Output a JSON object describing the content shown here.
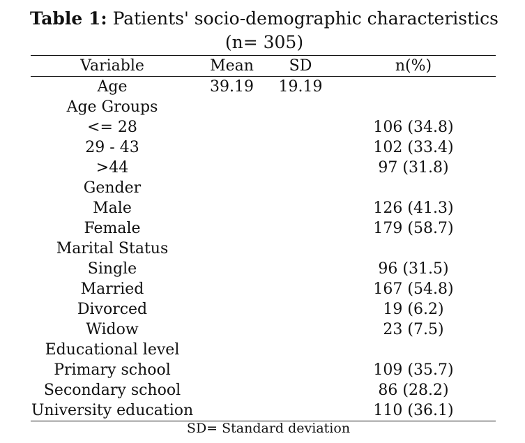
{
  "caption": {
    "label": "Table 1:",
    "text": "Patients' socio-demographic characteristics (n= 305)"
  },
  "table": {
    "headers": [
      "Variable",
      "Mean",
      "SD",
      "n(%)"
    ],
    "rows": [
      [
        "Age",
        "39.19",
        "19.19",
        ""
      ],
      [
        "Age Groups",
        "",
        "",
        ""
      ],
      [
        "<= 28",
        "",
        "",
        "106 (34.8)"
      ],
      [
        "29 - 43",
        "",
        "",
        "102 (33.4)"
      ],
      [
        ">44",
        "",
        "",
        "97 (31.8)"
      ],
      [
        "Gender",
        "",
        "",
        ""
      ],
      [
        "Male",
        "",
        "",
        "126 (41.3)"
      ],
      [
        "Female",
        "",
        "",
        "179 (58.7)"
      ],
      [
        "Marital Status",
        "",
        "",
        ""
      ],
      [
        "Single",
        "",
        "",
        "96 (31.5)"
      ],
      [
        "Married",
        "",
        "",
        "167 (54.8)"
      ],
      [
        "Divorced",
        "",
        "",
        "19 (6.2)"
      ],
      [
        "Widow",
        "",
        "",
        "23 (7.5)"
      ],
      [
        "Educational level",
        "",
        "",
        ""
      ],
      [
        "Primary school",
        "",
        "",
        "109 (35.7)"
      ],
      [
        "Secondary school",
        "",
        "",
        "86 (28.2)"
      ],
      [
        "University education",
        "",
        "",
        "110 (36.1)"
      ]
    ]
  },
  "footnote": "SD= Standard deviation"
}
